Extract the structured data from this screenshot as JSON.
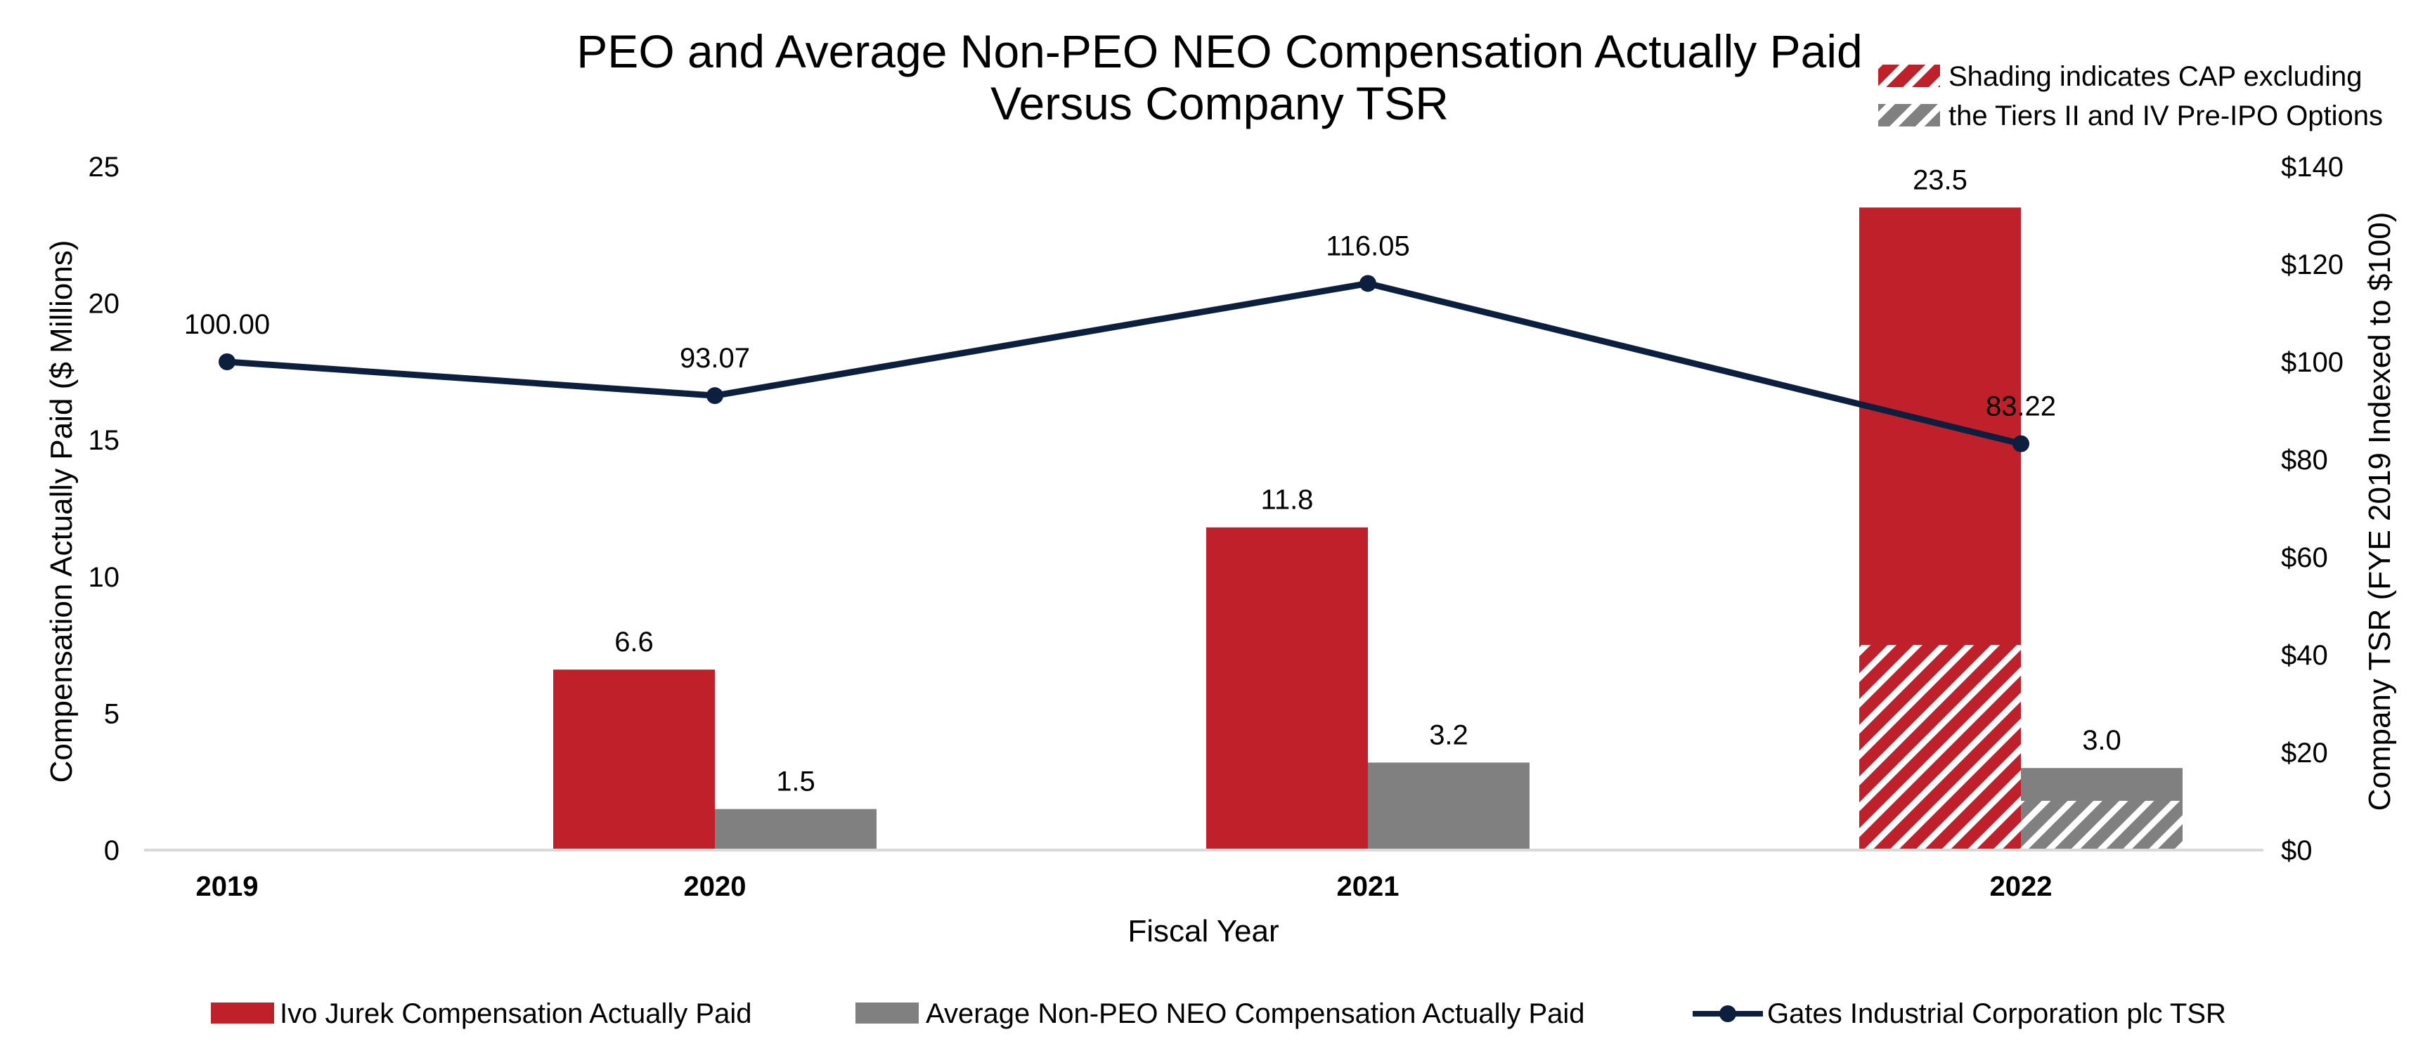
{
  "chart_data": {
    "type": "bar",
    "title": "PEO and Average Non-PEO NEO Compensation Actually Paid",
    "subtitle": "Versus Company TSR",
    "xlabel": "Fiscal Year",
    "ylabel": "Compensation Actually Paid ($ Millions)",
    "y2label": "Company TSR (FYE 2019 Indexed to $100)",
    "categories": [
      "2019",
      "2020",
      "2021",
      "2022"
    ],
    "ylim": [
      0,
      25
    ],
    "yticks": [
      "0",
      "5",
      "10",
      "15",
      "20",
      "25"
    ],
    "y2lim": [
      0,
      140
    ],
    "y2ticks": [
      "$0",
      "$20",
      "$40",
      "$60",
      "$80",
      "$100",
      "$120",
      "$140"
    ],
    "grid": false,
    "legend_position": "bottom",
    "series": [
      {
        "name": "Ivo Jurek Compensation Actually Paid",
        "kind": "bar",
        "color": "#c0202a",
        "values": [
          null,
          6.6,
          11.8,
          23.5
        ],
        "labels": [
          "",
          "6.6",
          "11.8",
          "23.5"
        ],
        "shaded_values": [
          null,
          null,
          null,
          7.5
        ]
      },
      {
        "name": "Average Non-PEO NEO Compensation Actually Paid",
        "kind": "bar",
        "color": "#808080",
        "values": [
          null,
          1.5,
          3.2,
          3.0
        ],
        "labels": [
          "",
          "1.5",
          "3.2",
          "3.0"
        ],
        "shaded_values": [
          null,
          null,
          null,
          1.8
        ]
      },
      {
        "name": "Gates Industrial Corporation plc TSR",
        "kind": "line",
        "axis": "right",
        "color": "#0c1f3f",
        "values": [
          100.0,
          93.07,
          116.05,
          83.22
        ],
        "labels": [
          "100.00",
          "93.07",
          "116.05",
          "83.22"
        ]
      }
    ],
    "shading_note": {
      "line1": "Shading indicates CAP excluding",
      "line2": "the Tiers II and IV Pre-IPO Options"
    }
  }
}
